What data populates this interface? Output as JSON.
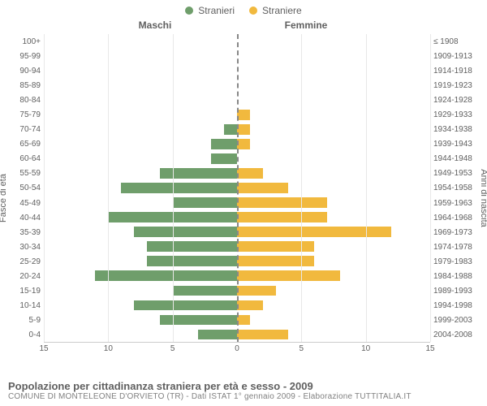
{
  "legend": {
    "male": {
      "label": "Stranieri",
      "color": "#6f9e6b"
    },
    "female": {
      "label": "Straniere",
      "color": "#f1b93e"
    }
  },
  "headers": {
    "left": "Maschi",
    "right": "Femmine"
  },
  "axis_titles": {
    "left": "Fasce di età",
    "right": "Anni di nascita"
  },
  "x_axis": {
    "max": 15,
    "ticks": [
      15,
      10,
      5,
      0,
      5,
      10,
      15
    ]
  },
  "colors": {
    "male_bar": "#6f9e6b",
    "female_bar": "#f1b93e",
    "grid": "#e8e8e8",
    "center": "#888888",
    "background": "#ffffff",
    "text": "#606060"
  },
  "typography": {
    "tick_fontsize": 10,
    "header_fontsize": 12,
    "title_fontsize": 13,
    "sub_fontsize": 10
  },
  "rows": [
    {
      "age": "100+",
      "birth": "≤ 1908",
      "m": 0,
      "f": 0
    },
    {
      "age": "95-99",
      "birth": "1909-1913",
      "m": 0,
      "f": 0
    },
    {
      "age": "90-94",
      "birth": "1914-1918",
      "m": 0,
      "f": 0
    },
    {
      "age": "85-89",
      "birth": "1919-1923",
      "m": 0,
      "f": 0
    },
    {
      "age": "80-84",
      "birth": "1924-1928",
      "m": 0,
      "f": 0
    },
    {
      "age": "75-79",
      "birth": "1929-1933",
      "m": 0,
      "f": 1
    },
    {
      "age": "70-74",
      "birth": "1934-1938",
      "m": 1,
      "f": 1
    },
    {
      "age": "65-69",
      "birth": "1939-1943",
      "m": 2,
      "f": 1
    },
    {
      "age": "60-64",
      "birth": "1944-1948",
      "m": 2,
      "f": 0
    },
    {
      "age": "55-59",
      "birth": "1949-1953",
      "m": 6,
      "f": 2
    },
    {
      "age": "50-54",
      "birth": "1954-1958",
      "m": 9,
      "f": 4
    },
    {
      "age": "45-49",
      "birth": "1959-1963",
      "m": 5,
      "f": 7
    },
    {
      "age": "40-44",
      "birth": "1964-1968",
      "m": 10,
      "f": 7
    },
    {
      "age": "35-39",
      "birth": "1969-1973",
      "m": 8,
      "f": 12
    },
    {
      "age": "30-34",
      "birth": "1974-1978",
      "m": 7,
      "f": 6
    },
    {
      "age": "25-29",
      "birth": "1979-1983",
      "m": 7,
      "f": 6
    },
    {
      "age": "20-24",
      "birth": "1984-1988",
      "m": 11,
      "f": 8
    },
    {
      "age": "15-19",
      "birth": "1989-1993",
      "m": 5,
      "f": 3
    },
    {
      "age": "10-14",
      "birth": "1994-1998",
      "m": 8,
      "f": 2
    },
    {
      "age": "5-9",
      "birth": "1999-2003",
      "m": 6,
      "f": 1
    },
    {
      "age": "0-4",
      "birth": "2004-2008",
      "m": 3,
      "f": 4
    }
  ],
  "footer": {
    "title": "Popolazione per cittadinanza straniera per età e sesso - 2009",
    "sub": "COMUNE DI MONTELEONE D'ORVIETO (TR) - Dati ISTAT 1° gennaio 2009 - Elaborazione TUTTITALIA.IT"
  }
}
